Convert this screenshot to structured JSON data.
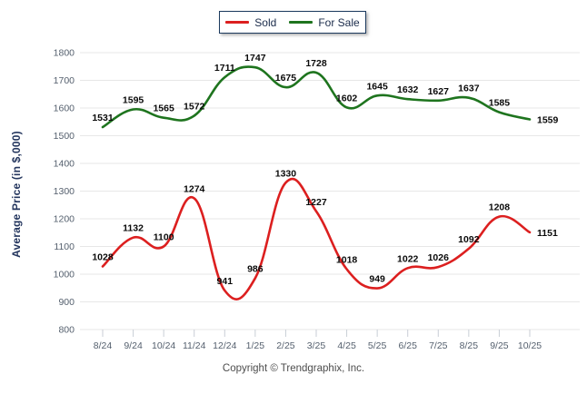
{
  "legend": {
    "items": [
      {
        "label": "Sold"
      },
      {
        "label": "For Sale"
      }
    ]
  },
  "footer": {
    "copyright": "Copyright © Trendgraphix, Inc."
  },
  "chart_data": {
    "type": "line",
    "title": "",
    "xlabel": "",
    "ylabel": "Average Price (in $,000)",
    "categories": [
      "8/24",
      "9/24",
      "10/24",
      "11/24",
      "12/24",
      "1/25",
      "2/25",
      "3/25",
      "4/25",
      "5/25",
      "6/25",
      "7/25",
      "8/25",
      "9/25",
      "10/25"
    ],
    "series": [
      {
        "name": "Sold",
        "color": "#dc1f1f",
        "values": [
          1028,
          1132,
          1100,
          1274,
          941,
          986,
          1330,
          1227,
          1018,
          949,
          1022,
          1026,
          1092,
          1208,
          1151
        ]
      },
      {
        "name": "For Sale",
        "color": "#1e741e",
        "values": [
          1531,
          1595,
          1565,
          1572,
          1711,
          1747,
          1675,
          1728,
          1602,
          1645,
          1632,
          1627,
          1637,
          1585,
          1559
        ]
      }
    ],
    "ylim": [
      800,
      1800
    ],
    "ytick_step": 100,
    "grid": "horizontal",
    "line_style": "smooth",
    "data_labels": true,
    "legend_position": "top-center"
  }
}
